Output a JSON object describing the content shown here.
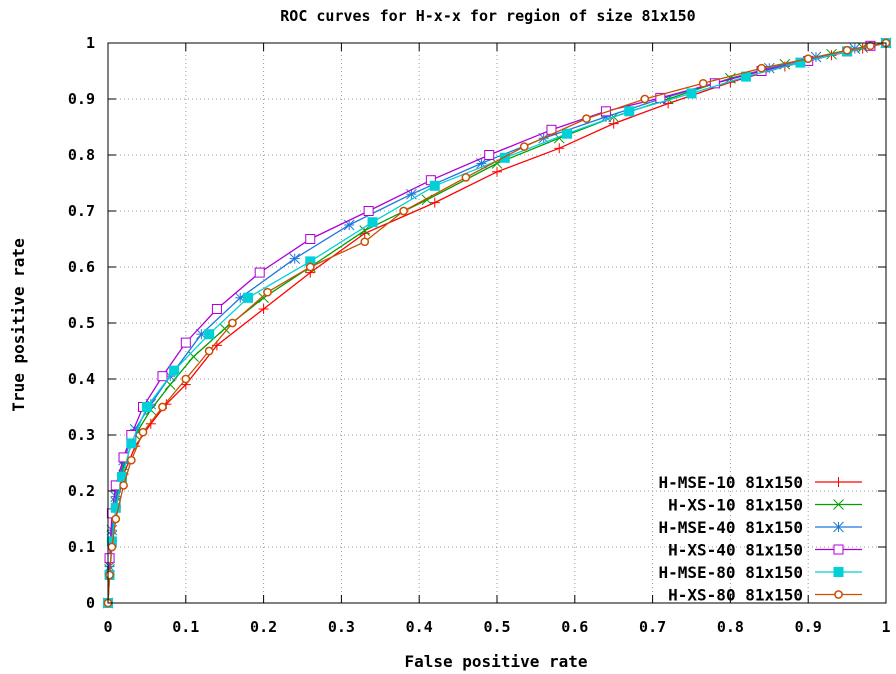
{
  "chart_data": {
    "type": "line",
    "title": "ROC curves for H-x-x for region of size 81x150",
    "xlabel": "False positive rate",
    "ylabel": "True positive rate",
    "xlim": [
      0,
      1
    ],
    "ylim": [
      0,
      1
    ],
    "x_ticks": [
      "0",
      "0.1",
      "0.2",
      "0.3",
      "0.4",
      "0.5",
      "0.6",
      "0.7",
      "0.8",
      "0.9",
      "1"
    ],
    "y_ticks": [
      "0",
      "0.1",
      "0.2",
      "0.3",
      "0.4",
      "0.5",
      "0.6",
      "0.7",
      "0.8",
      "0.9",
      "1"
    ],
    "grid": true,
    "legend_position": "bottom-right",
    "series": [
      {
        "name": "H-MSE-10 81x150",
        "color": "#ff0000",
        "marker": "plus",
        "x": [
          0,
          0.002,
          0.005,
          0.01,
          0.02,
          0.035,
          0.055,
          0.075,
          0.1,
          0.14,
          0.2,
          0.26,
          0.33,
          0.42,
          0.5,
          0.58,
          0.65,
          0.72,
          0.8,
          0.87,
          0.93,
          0.97,
          1
        ],
        "y": [
          0,
          0.05,
          0.11,
          0.17,
          0.23,
          0.28,
          0.32,
          0.355,
          0.39,
          0.46,
          0.525,
          0.59,
          0.66,
          0.715,
          0.77,
          0.812,
          0.856,
          0.892,
          0.93,
          0.958,
          0.978,
          0.99,
          1
        ]
      },
      {
        "name": "H-XS-10 81x150",
        "color": "#00a000",
        "marker": "x",
        "x": [
          0,
          0.002,
          0.005,
          0.01,
          0.02,
          0.035,
          0.055,
          0.08,
          0.11,
          0.15,
          0.2,
          0.26,
          0.33,
          0.41,
          0.5,
          0.58,
          0.65,
          0.72,
          0.8,
          0.87,
          0.93,
          0.97,
          1
        ],
        "y": [
          0,
          0.06,
          0.12,
          0.18,
          0.245,
          0.3,
          0.345,
          0.39,
          0.44,
          0.49,
          0.545,
          0.6,
          0.665,
          0.72,
          0.785,
          0.83,
          0.868,
          0.9,
          0.937,
          0.962,
          0.98,
          0.992,
          1
        ]
      },
      {
        "name": "H-MSE-40 81x150",
        "color": "#1e78dc",
        "marker": "star",
        "x": [
          0,
          0.002,
          0.005,
          0.01,
          0.02,
          0.035,
          0.055,
          0.08,
          0.12,
          0.17,
          0.24,
          0.31,
          0.39,
          0.48,
          0.56,
          0.64,
          0.71,
          0.78,
          0.85,
          0.91,
          0.96,
          1
        ],
        "y": [
          0,
          0.065,
          0.13,
          0.19,
          0.255,
          0.31,
          0.355,
          0.405,
          0.48,
          0.545,
          0.615,
          0.675,
          0.73,
          0.785,
          0.83,
          0.868,
          0.9,
          0.928,
          0.955,
          0.975,
          0.99,
          1
        ]
      },
      {
        "name": "H-XS-40 81x150",
        "color": "#b000d8",
        "marker": "square-open",
        "x": [
          0,
          0.002,
          0.005,
          0.01,
          0.02,
          0.03,
          0.045,
          0.07,
          0.1,
          0.14,
          0.195,
          0.26,
          0.335,
          0.415,
          0.49,
          0.57,
          0.64,
          0.71,
          0.78,
          0.84,
          0.9,
          0.95,
          0.98,
          1
        ],
        "y": [
          0,
          0.08,
          0.16,
          0.21,
          0.26,
          0.3,
          0.35,
          0.405,
          0.465,
          0.525,
          0.59,
          0.65,
          0.7,
          0.755,
          0.8,
          0.845,
          0.878,
          0.902,
          0.928,
          0.95,
          0.968,
          0.985,
          0.995,
          1
        ]
      },
      {
        "name": "H-MSE-80 81x150",
        "color": "#00d0d8",
        "marker": "square-filled",
        "x": [
          0,
          0.002,
          0.005,
          0.01,
          0.018,
          0.03,
          0.05,
          0.085,
          0.13,
          0.18,
          0.26,
          0.34,
          0.42,
          0.51,
          0.59,
          0.67,
          0.75,
          0.82,
          0.89,
          0.95,
          1
        ],
        "y": [
          0,
          0.05,
          0.11,
          0.17,
          0.225,
          0.285,
          0.35,
          0.415,
          0.48,
          0.545,
          0.61,
          0.68,
          0.745,
          0.795,
          0.838,
          0.878,
          0.91,
          0.94,
          0.965,
          0.985,
          1
        ]
      },
      {
        "name": "H-XS-80 81x150",
        "color": "#c85000",
        "marker": "circle-open",
        "x": [
          0,
          0.002,
          0.005,
          0.01,
          0.02,
          0.03,
          0.045,
          0.07,
          0.1,
          0.13,
          0.16,
          0.205,
          0.26,
          0.33,
          0.38,
          0.46,
          0.535,
          0.615,
          0.69,
          0.765,
          0.84,
          0.9,
          0.95,
          0.98,
          1
        ],
        "y": [
          0,
          0.05,
          0.1,
          0.15,
          0.21,
          0.255,
          0.305,
          0.35,
          0.4,
          0.45,
          0.5,
          0.555,
          0.6,
          0.645,
          0.7,
          0.76,
          0.815,
          0.865,
          0.9,
          0.928,
          0.955,
          0.972,
          0.987,
          0.995,
          1
        ]
      }
    ]
  }
}
